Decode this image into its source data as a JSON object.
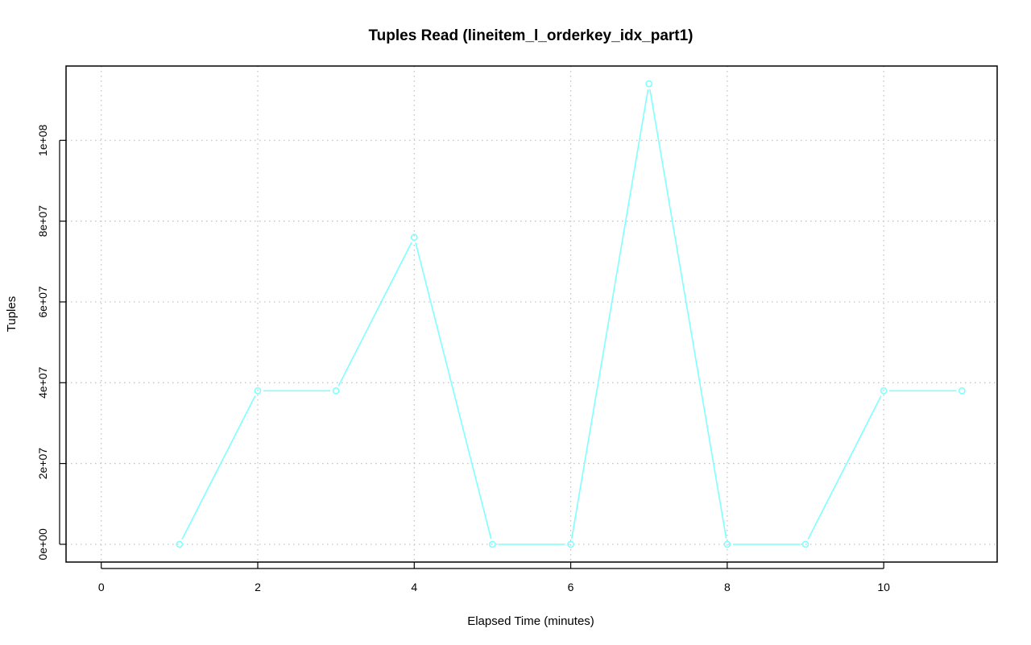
{
  "chart_data": {
    "type": "line",
    "title": "Tuples Read (lineitem_l_orderkey_idx_part1)",
    "xlabel": "Elapsed Time (minutes)",
    "ylabel": "Tuples",
    "xlim": [
      -0.45,
      11.45
    ],
    "ylim": [
      -4400000,
      118400000
    ],
    "x_ticks": [
      0,
      2,
      4,
      6,
      8,
      10
    ],
    "x_tick_labels": [
      "0",
      "2",
      "4",
      "6",
      "8",
      "10"
    ],
    "y_ticks": [
      0,
      20000000,
      40000000,
      60000000,
      80000000,
      100000000
    ],
    "y_tick_labels": [
      "0e+00",
      "2e+07",
      "4e+07",
      "6e+07",
      "8e+07",
      "1e+08"
    ],
    "grid": true,
    "series_color": "#80ffff",
    "x": [
      1,
      2,
      3,
      4,
      5,
      6,
      7,
      8,
      9,
      10,
      11
    ],
    "values": [
      0,
      38000000,
      38000000,
      76000000,
      0,
      0,
      114000000,
      0,
      0,
      38000000,
      38000000
    ]
  }
}
